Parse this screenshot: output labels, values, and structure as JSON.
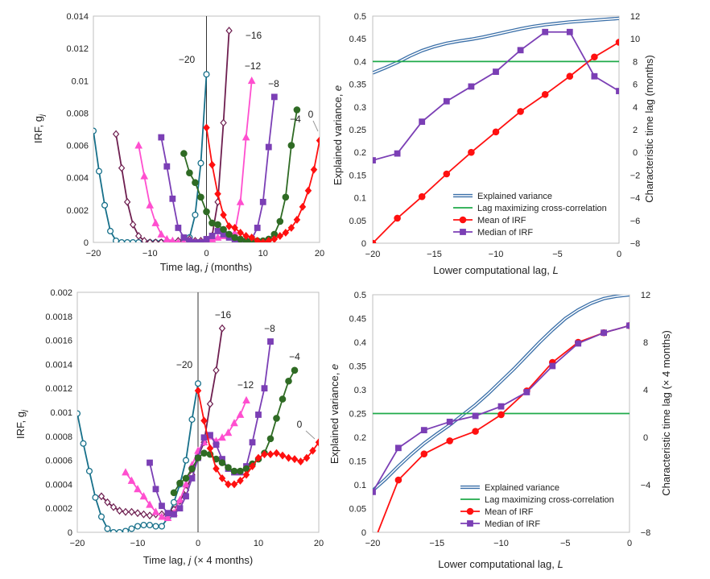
{
  "colors": {
    "s_m20": "#17708a",
    "s_m16": "#6e1f50",
    "s_m12": "#ff4fcf",
    "s_m8": "#7b3fb5",
    "s_m4": "#2f6b24",
    "s_0": "#ff1010",
    "explained": "#3a6fa8",
    "lagline": "#1faa4a",
    "mean": "#ff1010",
    "median": "#7b3fb5"
  },
  "chart_data": [
    {
      "id": "irf_monthly",
      "type": "line",
      "xlabel": "Time lag, j (months)",
      "ylabel": "IRF, g",
      "xlim": [
        -20,
        20
      ],
      "ylim": [
        0,
        0.014
      ],
      "x_ticks": [
        -20,
        -10,
        0,
        10,
        20
      ],
      "x_tick_labels": [
        "-20",
        "-10",
        "0",
        "10",
        "20"
      ],
      "y_ticks": [
        0,
        0.002,
        0.004,
        0.006,
        0.008,
        0.01,
        0.012,
        0.014
      ],
      "y_tick_labels": [
        "0",
        "0.002",
        "0.004",
        "0.006",
        "0.008",
        "0.01",
        "0.012",
        "0.014"
      ],
      "series": [
        {
          "name": "-20",
          "label": "−20",
          "color": "#17708a",
          "marker": "circle-open",
          "x": [
            -20,
            -19,
            -18,
            -17,
            -16,
            -15,
            -14,
            -13,
            -12,
            -11,
            -10,
            -9,
            -8,
            -7,
            -6,
            -5,
            -4,
            -3,
            -2,
            -1,
            0
          ],
          "y": [
            0.0069,
            0.0044,
            0.0023,
            0.0007,
            0.0001,
            0.0,
            0.0,
            0.0,
            0.0,
            0.0,
            0.0,
            0.0,
            0.0,
            0.0,
            0.0,
            0.0,
            0.0001,
            0.0003,
            0.0017,
            0.0049,
            0.0104
          ]
        },
        {
          "name": "-16",
          "label": "−16",
          "color": "#6e1f50",
          "marker": "diamond-open",
          "x": [
            -16,
            -15,
            -14,
            -13,
            -12,
            -11,
            -10,
            -9,
            -8,
            -7,
            -6,
            -5,
            -4,
            -3,
            -2,
            -1,
            0,
            1,
            2,
            3,
            4
          ],
          "y": [
            0.0067,
            0.0046,
            0.0025,
            0.0011,
            0.0004,
            0.0001,
            0.0,
            0.0,
            0.0,
            0.0,
            0.0,
            0.0001,
            0.0002,
            0.0002,
            0.0001,
            0.0001,
            0.0002,
            0.0004,
            0.0025,
            0.0074,
            0.0131
          ]
        },
        {
          "name": "-12",
          "label": "−12",
          "color": "#ff4fcf",
          "marker": "triangle",
          "x": [
            -12,
            -11,
            -10,
            -9,
            -8,
            -7,
            -6,
            -5,
            -4,
            -3,
            -2,
            -1,
            0,
            1,
            2,
            3,
            4,
            5,
            6,
            7,
            8
          ],
          "y": [
            0.006,
            0.0041,
            0.0023,
            0.0012,
            0.0005,
            0.0002,
            0.0001,
            0.0,
            0.0,
            0.0,
            0.0,
            0.0,
            0.0001,
            0.0002,
            0.0003,
            0.0004,
            0.0004,
            0.0006,
            0.0025,
            0.0065,
            0.01
          ]
        },
        {
          "name": "-8",
          "label": "−8",
          "color": "#7b3fb5",
          "marker": "square",
          "x": [
            -8,
            -7,
            -6,
            -5,
            -4,
            -3,
            -2,
            -1,
            0,
            1,
            2,
            3,
            4,
            5,
            6,
            7,
            8,
            9,
            10,
            11,
            12
          ],
          "y": [
            0.0065,
            0.0047,
            0.0027,
            0.0009,
            0.0003,
            0.0001,
            0.0,
            0.0,
            0.0002,
            0.0004,
            0.0007,
            0.0005,
            0.0003,
            0.0002,
            0.0001,
            0.0,
            0.0002,
            0.0009,
            0.0025,
            0.0059,
            0.009
          ]
        },
        {
          "name": "-4",
          "label": "−4",
          "color": "#2f6b24",
          "marker": "circle",
          "x": [
            -4,
            -3,
            -2,
            -1,
            0,
            1,
            2,
            3,
            4,
            5,
            6,
            7,
            8,
            9,
            10,
            11,
            12,
            13,
            14,
            15,
            16
          ],
          "y": [
            0.0055,
            0.0043,
            0.0037,
            0.0028,
            0.0019,
            0.0012,
            0.0011,
            0.0008,
            0.0005,
            0.0003,
            0.0002,
            0.0001,
            0.0001,
            0.0001,
            0.0001,
            0.0002,
            0.0005,
            0.0013,
            0.0028,
            0.006,
            0.0082
          ]
        },
        {
          "name": "0",
          "label": "0",
          "color": "#ff1010",
          "marker": "diamond",
          "x": [
            0,
            1,
            2,
            3,
            4,
            5,
            6,
            7,
            8,
            9,
            10,
            11,
            12,
            13,
            14,
            15,
            16,
            17,
            18,
            19,
            20
          ],
          "y": [
            0.0071,
            0.0048,
            0.003,
            0.0017,
            0.001,
            0.0009,
            0.0006,
            0.0004,
            0.0003,
            0.0001,
            0.0,
            0.0001,
            0.0002,
            0.0004,
            0.0006,
            0.0009,
            0.0014,
            0.0022,
            0.0032,
            0.0045,
            0.0063
          ]
        }
      ]
    },
    {
      "id": "variance_monthly",
      "type": "line",
      "xlabel": "Lower computational lag, L",
      "ylabel": "Explained variance, e",
      "ylabel_right": "Characteristic time lag (months)",
      "xlim": [
        -20,
        0
      ],
      "ylim": [
        0,
        0.5
      ],
      "ylim_right": [
        -8,
        12
      ],
      "x_ticks": [
        -20,
        -15,
        -10,
        -5,
        0
      ],
      "x_tick_labels": [
        "-20",
        "-15",
        "-10",
        "-5",
        "0"
      ],
      "y_ticks": [
        0,
        0.05,
        0.1,
        0.15,
        0.2,
        0.25,
        0.3,
        0.35,
        0.4,
        0.45,
        0.5
      ],
      "y_tick_labels": [
        "0",
        "0.05",
        "0.1",
        "0.15",
        "0.2",
        "0.25",
        "0.3",
        "0.35",
        "0.4",
        "0.45",
        "0.5"
      ],
      "y2_ticks": [
        -8,
        -6,
        -4,
        -2,
        0,
        2,
        4,
        6,
        8,
        10,
        12
      ],
      "y2_tick_labels": [
        "-8",
        "-6",
        "-4",
        "-2",
        "0",
        "2",
        "4",
        "6",
        "8",
        "10",
        "12"
      ],
      "legend": [
        "Explained variance",
        "Lag maximizing cross-correlation",
        "Mean of IRF",
        "Median of IRF"
      ],
      "explained_variance": {
        "x": [
          -20,
          -19,
          -18,
          -17,
          -16,
          -15,
          -14,
          -13,
          -12,
          -11,
          -10,
          -9,
          -8,
          -7,
          -6,
          -5,
          -4,
          -3,
          -2,
          -1,
          0
        ],
        "y": [
          0.375,
          0.386,
          0.398,
          0.412,
          0.424,
          0.433,
          0.44,
          0.445,
          0.449,
          0.454,
          0.46,
          0.466,
          0.472,
          0.477,
          0.481,
          0.484,
          0.487,
          0.489,
          0.491,
          0.493,
          0.495
        ]
      },
      "lag_cross_correlation": 8,
      "mean_irf": {
        "x": [
          -20,
          -18,
          -16,
          -14,
          -12,
          -10,
          -8,
          -6,
          -4,
          -2,
          0
        ],
        "y": [
          -8,
          -5.8,
          -3.9,
          -1.9,
          0,
          1.8,
          3.6,
          5.1,
          6.7,
          8.4,
          9.7
        ]
      },
      "median_irf": {
        "x": [
          -20,
          -18,
          -16,
          -14,
          -12,
          -10,
          -8,
          -6,
          -4,
          -2,
          0
        ],
        "y": [
          -0.7,
          -0.1,
          2.7,
          4.5,
          5.8,
          7.1,
          9.0,
          10.6,
          10.6,
          6.7,
          5.4
        ]
      }
    },
    {
      "id": "irf_4month",
      "type": "line",
      "xlabel": "Time lag, j (× 4 months)",
      "ylabel": "IRF, g",
      "xlim": [
        -20,
        20
      ],
      "ylim": [
        0,
        0.002
      ],
      "x_ticks": [
        -20,
        -10,
        0,
        10,
        20
      ],
      "x_tick_labels": [
        "-20",
        "-10",
        "0",
        "10",
        "20"
      ],
      "y_ticks": [
        0,
        0.0002,
        0.0004,
        0.0006,
        0.0008,
        0.001,
        0.0012,
        0.0014,
        0.0016,
        0.0018,
        0.002
      ],
      "y_tick_labels": [
        "0",
        "0.0002",
        "0.0004",
        "0.0006",
        "0.0008",
        "0.001",
        "0.0012",
        "0.0014",
        "0.0016",
        "0.0018",
        "0.002"
      ],
      "series": [
        {
          "name": "-20",
          "label": "−20",
          "color": "#17708a",
          "marker": "circle-open",
          "x": [
            -20,
            -19,
            -18,
            -17,
            -16,
            -15,
            -14,
            -13,
            -12,
            -11,
            -10,
            -9,
            -8,
            -7,
            -6,
            -5,
            -4,
            -3,
            -2,
            -1,
            0
          ],
          "y": [
            0.00099,
            0.00074,
            0.00051,
            0.00029,
            0.00013,
            3e-05,
            0.0,
            0.0,
            1e-05,
            3e-05,
            5e-05,
            6e-05,
            6e-05,
            5e-05,
            5e-05,
            0.00012,
            0.00025,
            0.0004,
            0.0006,
            0.00094,
            0.00124
          ]
        },
        {
          "name": "-16",
          "label": "−16",
          "color": "#6e1f50",
          "marker": "diamond-open",
          "x": [
            -16,
            -15,
            -14,
            -13,
            -12,
            -11,
            -10,
            -9,
            -8,
            -7,
            -6,
            -5,
            -4,
            -3,
            -2,
            -1,
            0,
            1,
            2,
            3,
            4
          ],
          "y": [
            0.0003,
            0.00025,
            0.00021,
            0.00018,
            0.00017,
            0.00017,
            0.00016,
            0.00015,
            0.00014,
            0.00015,
            0.00015,
            0.00015,
            0.00019,
            0.00026,
            0.00035,
            0.00048,
            0.00063,
            0.00075,
            0.00107,
            0.00135,
            0.0017
          ]
        },
        {
          "name": "-12",
          "label": "−12",
          "color": "#ff4fcf",
          "marker": "triangle",
          "x": [
            -12,
            -11,
            -10,
            -9,
            -8,
            -7,
            -6,
            -5,
            -4,
            -3,
            -2,
            -1,
            0,
            1,
            2,
            3,
            4,
            5,
            6,
            7,
            8
          ],
          "y": [
            0.0005,
            0.00043,
            0.00036,
            0.0003,
            0.00023,
            0.00017,
            0.00013,
            0.00012,
            0.00016,
            0.00027,
            0.0004,
            0.00056,
            0.00068,
            0.00075,
            0.0008,
            0.00076,
            0.00079,
            0.00083,
            0.00091,
            0.00098,
            0.0011
          ]
        },
        {
          "name": "-8",
          "label": "−8",
          "color": "#7b3fb5",
          "marker": "square",
          "x": [
            -8,
            -7,
            -6,
            -5,
            -4,
            -3,
            -2,
            -1,
            0,
            1,
            2,
            3,
            4,
            5,
            6,
            7,
            8,
            9,
            10,
            11,
            12
          ],
          "y": [
            0.00058,
            0.00036,
            0.00022,
            0.00016,
            0.00015,
            0.0002,
            0.0003,
            0.00045,
            0.00062,
            0.00079,
            0.00081,
            0.00073,
            0.00061,
            0.00053,
            0.0005,
            0.0005,
            0.00055,
            0.00075,
            0.00098,
            0.0012,
            0.00159
          ]
        },
        {
          "name": "-4",
          "label": "−4",
          "color": "#2f6b24",
          "marker": "circle",
          "x": [
            -4,
            -3,
            -2,
            -1,
            0,
            1,
            2,
            3,
            4,
            5,
            6,
            7,
            8,
            9,
            10,
            11,
            12,
            13,
            14,
            15,
            16
          ],
          "y": [
            0.00033,
            0.00041,
            0.00045,
            0.00053,
            0.00062,
            0.00066,
            0.00065,
            0.00061,
            0.00058,
            0.00054,
            0.00051,
            0.00051,
            0.00053,
            0.00057,
            0.00061,
            0.00066,
            0.00078,
            0.00095,
            0.00111,
            0.00126,
            0.00135
          ]
        },
        {
          "name": "0",
          "label": "0",
          "color": "#ff1010",
          "marker": "diamond",
          "x": [
            0,
            1,
            2,
            3,
            4,
            5,
            6,
            7,
            8,
            9,
            10,
            11,
            12,
            13,
            14,
            15,
            16,
            17,
            18,
            19,
            20
          ],
          "y": [
            0.00118,
            0.00093,
            0.0007,
            0.00053,
            0.00045,
            0.0004,
            0.0004,
            0.00043,
            0.00048,
            0.00055,
            0.00062,
            0.00065,
            0.00065,
            0.00066,
            0.00064,
            0.00062,
            0.00061,
            0.00059,
            0.00062,
            0.00068,
            0.00075
          ]
        }
      ]
    },
    {
      "id": "variance_4month",
      "type": "line",
      "xlabel": "Lower computational lag, L",
      "ylabel": "Explained variance, e",
      "ylabel_right": "Characteristic time lag (× 4 months)",
      "xlim": [
        -20,
        0
      ],
      "ylim": [
        0,
        0.5
      ],
      "ylim_right": [
        -8,
        12
      ],
      "x_ticks": [
        -20,
        -15,
        -10,
        -5,
        0
      ],
      "x_tick_labels": [
        "-20",
        "-15",
        "-10",
        "-5",
        "0"
      ],
      "y_ticks": [
        0,
        0.05,
        0.1,
        0.15,
        0.2,
        0.25,
        0.3,
        0.35,
        0.4,
        0.45,
        0.5
      ],
      "y_tick_labels": [
        "0",
        "0.05",
        "0.1",
        "0.15",
        "0.2",
        "0.25",
        "0.3",
        "0.35",
        "0.4",
        "0.45",
        "0.5"
      ],
      "y2_ticks": [
        -8,
        -4,
        0,
        4,
        8,
        12
      ],
      "y2_tick_labels": [
        "-8",
        "-4",
        "0",
        "4",
        "8",
        "12"
      ],
      "legend": [
        "Explained variance",
        "Lag maximizing cross-correlation",
        "Mean of IRF",
        "Median of IRF"
      ],
      "explained_variance": {
        "x": [
          -20,
          -19,
          -18,
          -17,
          -16,
          -15,
          -14,
          -13,
          -12,
          -11,
          -10,
          -9,
          -8,
          -7,
          -6,
          -5,
          -4,
          -3,
          -2,
          -1,
          0
        ],
        "y": [
          0.088,
          0.112,
          0.139,
          0.164,
          0.187,
          0.207,
          0.226,
          0.247,
          0.268,
          0.292,
          0.318,
          0.344,
          0.372,
          0.4,
          0.426,
          0.45,
          0.468,
          0.482,
          0.492,
          0.497,
          0.5
        ]
      },
      "lag_cross_correlation": 2.0,
      "mean_irf": {
        "x": [
          -19.6,
          -18,
          -16,
          -14,
          -12,
          -10,
          -8,
          -6,
          -4,
          -2,
          0
        ],
        "y": [
          -8,
          -3.6,
          -1.4,
          -0.3,
          0.5,
          1.9,
          3.9,
          6.3,
          8.0,
          8.8,
          9.4
        ]
      },
      "median_irf": {
        "x": [
          -20,
          -18,
          -16,
          -14,
          -12,
          -10,
          -8,
          -6,
          -4,
          -2,
          0
        ],
        "y": [
          -4.6,
          -0.9,
          0.6,
          1.3,
          1.8,
          2.6,
          3.8,
          6.0,
          7.9,
          8.8,
          9.4
        ]
      }
    }
  ]
}
